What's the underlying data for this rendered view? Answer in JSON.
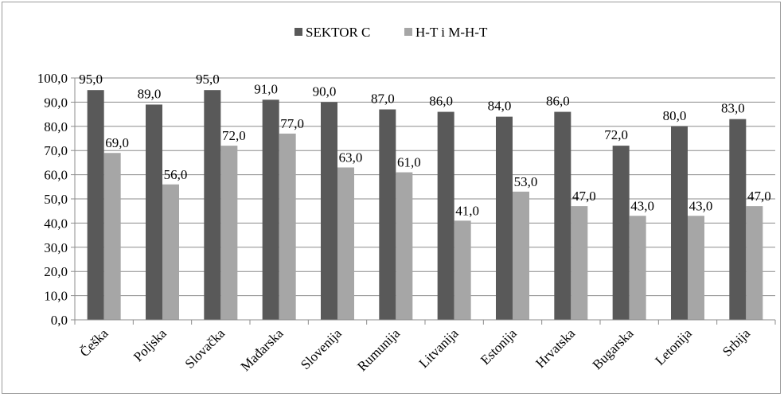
{
  "chart_data": {
    "type": "bar",
    "categories": [
      "Češka",
      "Poljska",
      "Slovačka",
      "Mađarska",
      "Slovenija",
      "Rumunija",
      "Litvanija",
      "Estonija",
      "Hrvatska",
      "Bugarska",
      "Letonija",
      "Srbija"
    ],
    "series": [
      {
        "name": "SEKTOR C",
        "color": "#595959",
        "values": [
          95.0,
          89.0,
          95.0,
          91.0,
          90.0,
          87.0,
          86.0,
          84.0,
          86.0,
          72.0,
          80.0,
          83.0
        ]
      },
      {
        "name": "H-T i M-H-T",
        "color": "#a6a6a6",
        "values": [
          69.0,
          56.0,
          72.0,
          77.0,
          63.0,
          61.0,
          41.0,
          53.0,
          47.0,
          43.0,
          43.0,
          47.0
        ]
      }
    ],
    "yticks": [
      "0,0",
      "10,0",
      "20,0",
      "30,0",
      "40,0",
      "50,0",
      "60,0",
      "70,0",
      "80,0",
      "90,0",
      "100,0"
    ],
    "ylim": [
      0,
      100
    ],
    "ystep": 10,
    "title": "",
    "xlabel": "",
    "ylabel": "",
    "legend_position": "top",
    "grid": true,
    "data_labels": true,
    "decimal_separator": ","
  }
}
